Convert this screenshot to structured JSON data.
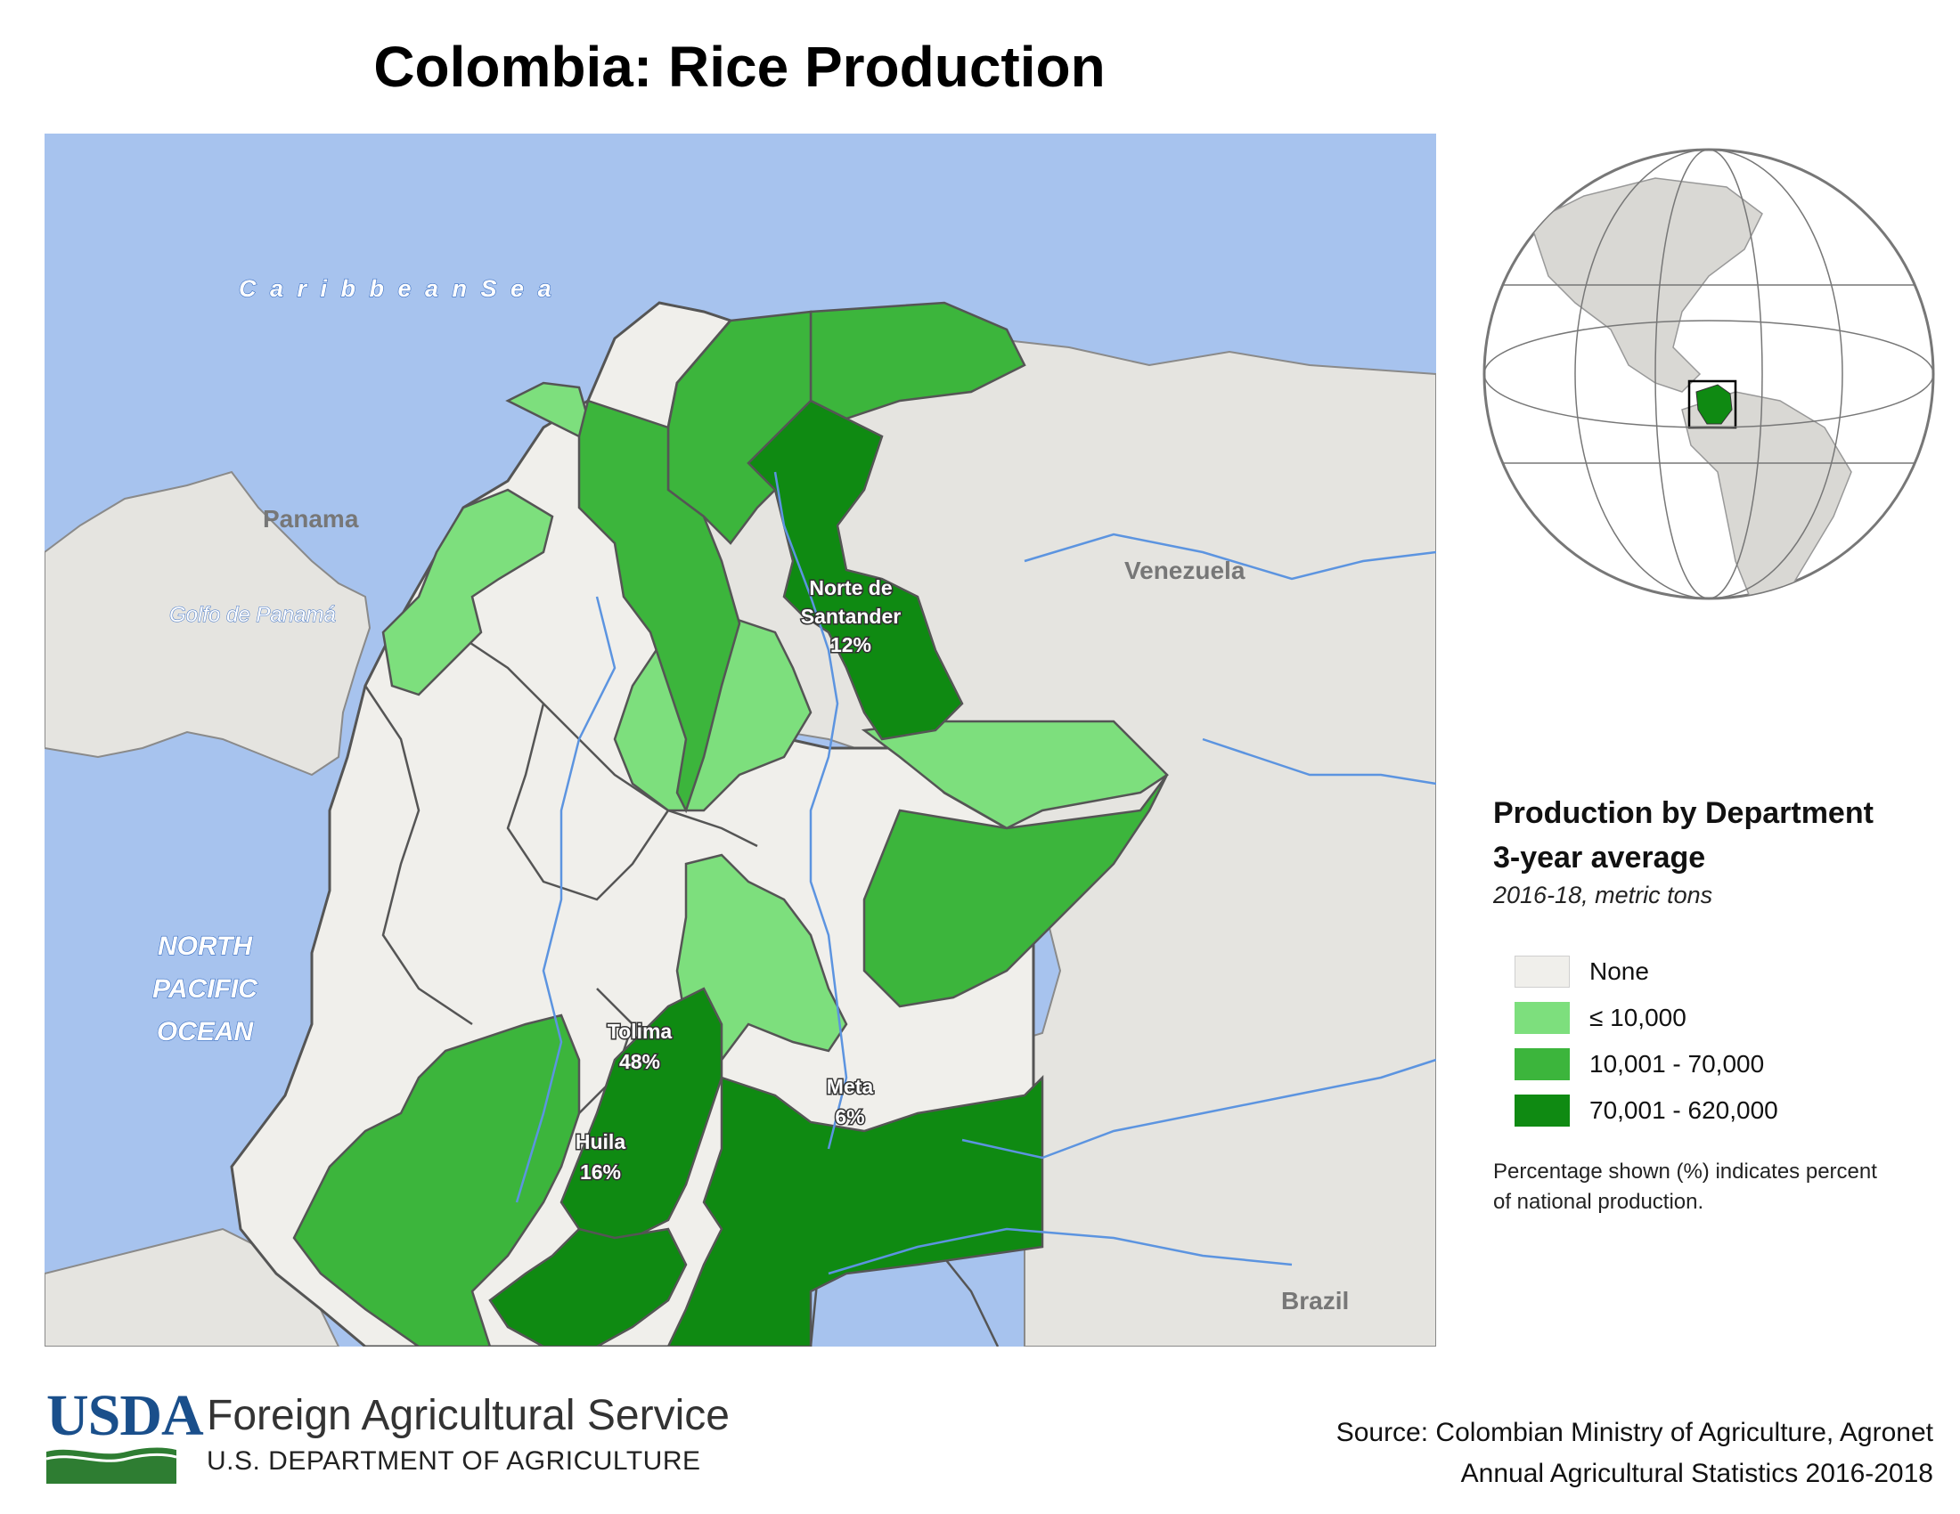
{
  "title": "Colombia: Rice Production",
  "map_labels": {
    "caribbean_sea": "C a r i b b e a n   S e a",
    "pacific_1": "NORTH",
    "pacific_2": "PACIFIC",
    "pacific_3": "OCEAN",
    "panama": "Panama",
    "golfo": "Golfo de Panamá",
    "venezuela": "Venezuela",
    "brazil": "Brazil"
  },
  "departments": [
    {
      "name_lines": [
        "Norte de",
        "Santander"
      ],
      "percent": "12%",
      "class": "70,001 - 620,000"
    },
    {
      "name_lines": [
        "Tolima"
      ],
      "percent": "48%",
      "class": "70,001 - 620,000"
    },
    {
      "name_lines": [
        "Huila"
      ],
      "percent": "16%",
      "class": "70,001 - 620,000"
    },
    {
      "name_lines": [
        "Meta"
      ],
      "percent": "6%",
      "class": "70,001 - 620,000"
    }
  ],
  "legend": {
    "title_line1": "Production by Department",
    "title_line2": "3-year average",
    "subtitle": "2016-18, metric tons",
    "items": [
      {
        "label": "None",
        "color": "#f0efeb"
      },
      {
        "label": "≤ 10,000",
        "color": "#7ddf7d"
      },
      {
        "label": "10,001 - 70,000",
        "color": "#3cb53c"
      },
      {
        "label": "70,001 - 620,000",
        "color": "#0f8a12"
      }
    ],
    "note": "Percentage shown (%) indicates percent of national production."
  },
  "colors": {
    "water": "#a7c3ee",
    "land_other": "#e5e4e0",
    "none": "#f0efeb",
    "low": "#7ddf7d",
    "mid": "#3cb53c",
    "high": "#0f8a12",
    "river": "#5c94e0",
    "usda_blue": "#1a4f8b",
    "usda_green": "#2e7d32"
  },
  "footer": {
    "usda": "USDA",
    "agency": "Foreign Agricultural Service",
    "dept": "U.S. DEPARTMENT OF AGRICULTURE",
    "source_line1": "Source: Colombian Ministry of Agriculture, Agronet",
    "source_line2": "Annual Agricultural Statistics 2016-2018"
  }
}
